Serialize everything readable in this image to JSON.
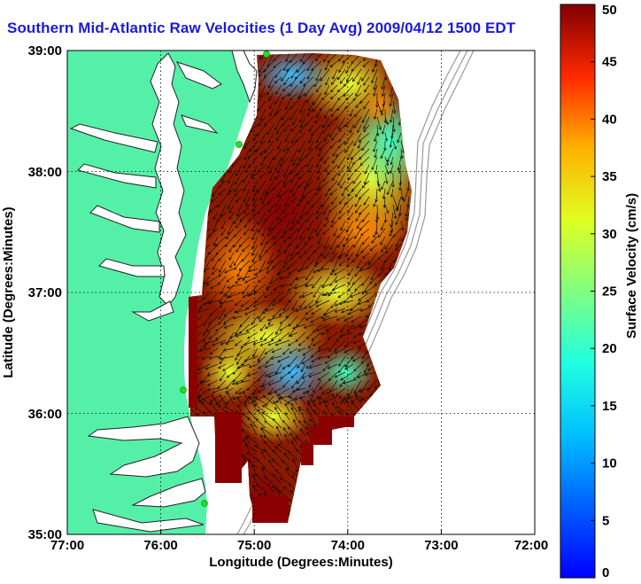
{
  "title": "Southern Mid-Atlantic Raw Velocities (1 Day Avg) 2009/04/12 1500 EDT",
  "chart_data": {
    "type": "heatmap",
    "title": "Southern Mid-Atlantic Raw Velocities (1 Day Avg) 2009/04/12 1500 EDT",
    "xlabel": "Longitude (Degrees:Minutes)",
    "ylabel": "Latitude (Degrees:Minutes)",
    "x_ticks": [
      "77:00",
      "76:00",
      "75:00",
      "74:00",
      "73:00",
      "72:00"
    ],
    "y_ticks": [
      "39:00",
      "38:00",
      "37:00",
      "36:00",
      "35:00"
    ],
    "xlim": [
      -77,
      -72
    ],
    "ylim": [
      35,
      39
    ],
    "grid": true,
    "colorbar": {
      "label": "Surface Velocity (cm/s)",
      "ticks": [
        "0",
        "5",
        "10",
        "15",
        "20",
        "25",
        "30",
        "35",
        "40",
        "45",
        "50"
      ],
      "range": [
        0,
        50
      ],
      "colormap": "jet"
    },
    "stations": [
      {
        "lon": -74.85,
        "lat": 38.97
      },
      {
        "lon": -75.1,
        "lat": 38.2
      },
      {
        "lon": -75.7,
        "lat": 36.18
      },
      {
        "lon": -75.47,
        "lat": 35.25
      }
    ]
  },
  "colors": {
    "land": "#55f0a8",
    "title": "#1a1adc",
    "station": "#28d828",
    "bathymetry": "#999999"
  }
}
